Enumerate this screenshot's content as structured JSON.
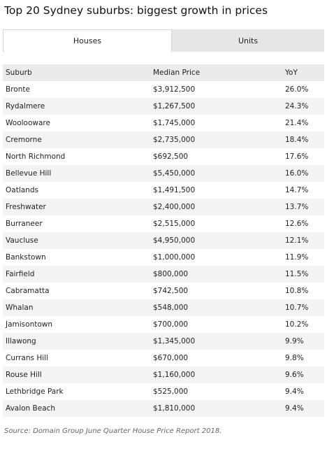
{
  "title": "Top 20 Sydney suburbs: biggest growth in prices",
  "tabs": [
    "Houses",
    "Units"
  ],
  "table": {
    "header": [
      "Suburb",
      "Median Price",
      "YoY"
    ],
    "rows": [
      [
        "Bronte",
        "$3,912,500",
        "26.0%"
      ],
      [
        "Rydalmere",
        "$1,267,500",
        "24.3%"
      ],
      [
        "Woolooware",
        "$1,745,000",
        "21.4%"
      ],
      [
        "Cremorne",
        "$2,735,000",
        "18.4%"
      ],
      [
        "North Richmond",
        "$692,500",
        "17.6%"
      ],
      [
        "Bellevue Hill",
        "$5,450,000",
        "16.0%"
      ],
      [
        "Oatlands",
        "$1,491,500",
        "14.7%"
      ],
      [
        "Freshwater",
        "$2,400,000",
        "13.7%"
      ],
      [
        "Burraneer",
        "$2,515,000",
        "12.6%"
      ],
      [
        "Vaucluse",
        "$4,950,000",
        "12.1%"
      ],
      [
        "Bankstown",
        "$1,000,000",
        "11.9%"
      ],
      [
        "Fairfield",
        "$800,000",
        "11.5%"
      ],
      [
        "Cabramatta",
        "$742,500",
        "10.8%"
      ],
      [
        "Whalan",
        "$548,000",
        "10.7%"
      ],
      [
        "Jamisontown",
        "$700,000",
        "10.2%"
      ],
      [
        "Illawong",
        "$1,345,000",
        "9.9%"
      ],
      [
        "Currans Hill",
        "$670,000",
        "9.8%"
      ],
      [
        "Rouse Hill",
        "$1,160,000",
        "9.6%"
      ],
      [
        "Lethbridge Park",
        "$525,000",
        "9.4%"
      ],
      [
        "Avalon Beach",
        "$1,810,000",
        "9.4%"
      ]
    ]
  },
  "source": "Source: Domain Group June Quarter House Price Report 2018."
}
